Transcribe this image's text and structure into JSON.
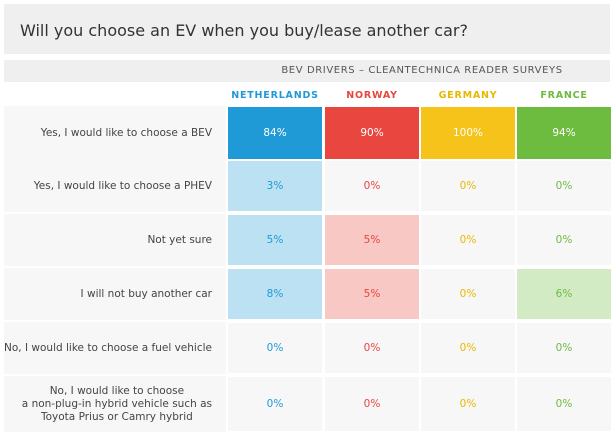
{
  "chart_data": {
    "type": "table",
    "title": "Will you choose an EV when you buy/lease another car?",
    "subtitle": "BEV DRIVERS – CLEANTECHNICA READER SURVEYS",
    "columns": [
      {
        "name": "NETHERLANDS",
        "color": "#1f9ad6"
      },
      {
        "name": "NORWAY",
        "color": "#e8463f"
      },
      {
        "name": "GERMANY",
        "color": "#f5c319"
      },
      {
        "name": "FRANCE",
        "color": "#6dbb3f"
      }
    ],
    "rows": [
      {
        "label": "Yes, I would like to choose a BEV",
        "values": [
          "84%",
          "90%",
          "100%",
          "94%"
        ]
      },
      {
        "label": "Yes, I would like to choose a PHEV",
        "values": [
          "3%",
          "0%",
          "0%",
          "0%"
        ]
      },
      {
        "label": "Not yet sure",
        "values": [
          "5%",
          "5%",
          "0%",
          "0%"
        ]
      },
      {
        "label": "I will not buy another car",
        "values": [
          "8%",
          "5%",
          "0%",
          "6%"
        ]
      },
      {
        "label": "No, I would like to choose a fuel vehicle",
        "values": [
          "0%",
          "0%",
          "0%",
          "0%"
        ]
      },
      {
        "label": "No, I would like to choose a non-plug-in hybrid vehicle such as Toyota Prius or Camry hybrid",
        "label_lines": [
          "No, I would like to choose",
          "a non-plug-in hybrid vehicle such as",
          "Toyota Prius or Camry hybrid"
        ],
        "values": [
          "0%",
          "0%",
          "0%",
          "0%"
        ]
      }
    ],
    "numeric_values": [
      [
        84,
        90,
        100,
        94
      ],
      [
        3,
        0,
        0,
        0
      ],
      [
        5,
        5,
        0,
        0
      ],
      [
        8,
        5,
        0,
        6
      ],
      [
        0,
        0,
        0,
        0
      ],
      [
        0,
        0,
        0,
        0
      ]
    ]
  }
}
